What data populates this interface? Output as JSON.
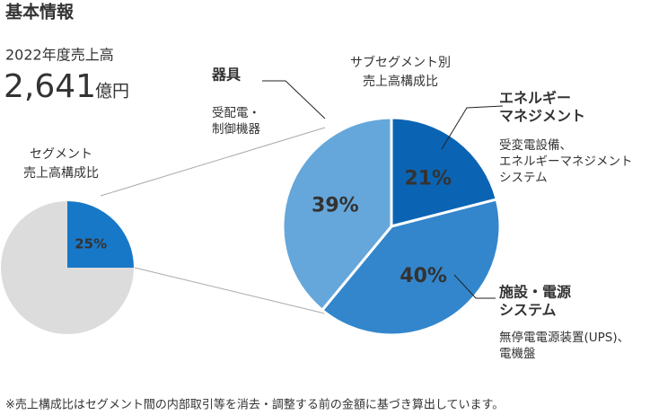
{
  "title": "基本情報",
  "revenue": {
    "label": "2022年度売上高",
    "value": "2,641",
    "unit": "億円"
  },
  "footnote": "※売上構成比はセグメント間の内部取引等を消去・調整する前の金額に基づき算出しています。",
  "chart_data": [
    {
      "type": "pie",
      "title": [
        "セグメント",
        "売上高構成比"
      ],
      "values": [
        25,
        75
      ],
      "value_labels": [
        "25%",
        null
      ],
      "colors": [
        "#1878c8",
        "#dcdcdc"
      ]
    },
    {
      "type": "pie",
      "title": [
        "サブセグメント別",
        "売上高構成比"
      ],
      "categories": [
        [
          "エネルギー",
          "マネジメント"
        ],
        [
          "施設・電源",
          "システム"
        ],
        [
          "器具"
        ]
      ],
      "descriptions": [
        [
          "受変電設備、",
          "エネルギーマネジメント",
          "システム"
        ],
        [
          "無停電電源装置(UPS)、",
          "電機盤"
        ],
        [
          "受配電・",
          "制御機器"
        ]
      ],
      "values": [
        21,
        40,
        39
      ],
      "value_labels": [
        "21%",
        "40%",
        "39%"
      ],
      "colors": [
        "#0b64b3",
        "#3386cc",
        "#65a7da"
      ]
    }
  ]
}
